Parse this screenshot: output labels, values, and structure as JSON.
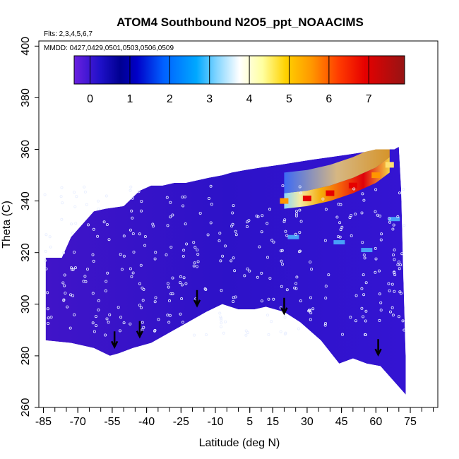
{
  "chart_data": {
    "type": "heatmap",
    "title": "ATOM4 Southbound N2O5_ppt_NOAACIMS",
    "subtitle_flights": "Flts: 2,3,4,5,6,7",
    "subtitle_dates": "MMDD: 0427,0429,0501,0503,0506,0509",
    "xlabel": "Latitude (deg N)",
    "ylabel": "Theta (C)",
    "xlim": [
      -87,
      87
    ],
    "ylim": [
      260,
      402
    ],
    "x_ticks": [
      -85,
      -70,
      -55,
      -40,
      -25,
      -10,
      5,
      15,
      30,
      45,
      60,
      75
    ],
    "x_minor_ticks": [
      -85,
      -80,
      -75,
      -70,
      -65,
      -60,
      -55,
      -50,
      -45,
      -40,
      -35,
      -30,
      -25,
      -20,
      -15,
      -10,
      -5,
      0,
      5,
      10,
      15,
      20,
      25,
      30,
      35,
      40,
      45,
      50,
      55,
      60,
      65,
      70,
      75,
      80,
      85
    ],
    "y_ticks": [
      260,
      280,
      300,
      320,
      340,
      360,
      380,
      400
    ],
    "colorbar": {
      "range": [
        -0.4,
        7.9
      ],
      "ticks": [
        0,
        1,
        2,
        3,
        4,
        5,
        6,
        7
      ]
    },
    "coverage_top": [
      [
        -84,
        318
      ],
      [
        -77,
        318
      ],
      [
        -73,
        326
      ],
      [
        -68,
        331
      ],
      [
        -63,
        336
      ],
      [
        -58,
        337
      ],
      [
        -50,
        338
      ],
      [
        -43,
        344
      ],
      [
        -38,
        346
      ],
      [
        -33,
        346
      ],
      [
        -28,
        347
      ],
      [
        -23,
        347
      ],
      [
        -18,
        348
      ],
      [
        -13,
        349
      ],
      [
        -7,
        350
      ],
      [
        -3,
        351
      ],
      [
        3,
        352
      ],
      [
        10,
        353
      ],
      [
        18,
        354
      ],
      [
        25,
        355
      ],
      [
        32,
        356
      ],
      [
        40,
        357
      ],
      [
        48,
        358
      ],
      [
        55,
        359
      ],
      [
        60,
        360
      ],
      [
        64,
        360
      ],
      [
        68,
        360
      ],
      [
        70,
        361
      ],
      [
        71,
        345
      ],
      [
        72,
        310
      ],
      [
        73,
        280
      ],
      [
        73,
        265
      ]
    ],
    "coverage_bottom": [
      [
        73,
        265
      ],
      [
        62,
        276
      ],
      [
        56,
        277
      ],
      [
        50,
        279
      ],
      [
        44,
        277
      ],
      [
        36,
        286
      ],
      [
        27,
        293
      ],
      [
        20,
        297
      ],
      [
        12,
        299
      ],
      [
        7,
        298
      ],
      [
        0,
        298
      ],
      [
        -7,
        300
      ],
      [
        -14,
        297
      ],
      [
        -22,
        293
      ],
      [
        -30,
        289
      ],
      [
        -38,
        285
      ],
      [
        -46,
        283
      ],
      [
        -52,
        281
      ],
      [
        -56,
        280
      ],
      [
        -63,
        283
      ],
      [
        -73,
        285
      ],
      [
        -84,
        286
      ]
    ],
    "hot_plume": [
      {
        "x": 20,
        "theta": 340,
        "value": 6.2
      },
      {
        "x": 30,
        "theta": 341,
        "value": 6.8
      },
      {
        "x": 40,
        "theta": 343,
        "value": 7.2
      },
      {
        "x": 50,
        "theta": 346,
        "value": 7.0
      },
      {
        "x": 60,
        "theta": 350,
        "value": 6.0
      },
      {
        "x": 66,
        "theta": 354,
        "value": 5.0
      }
    ],
    "markers": [
      {
        "x": -54,
        "theta": 284
      },
      {
        "x": -43,
        "theta": 288
      },
      {
        "x": -18,
        "theta": 300
      },
      {
        "x": 20,
        "theta": 297
      },
      {
        "x": 61,
        "theta": 281
      }
    ]
  }
}
